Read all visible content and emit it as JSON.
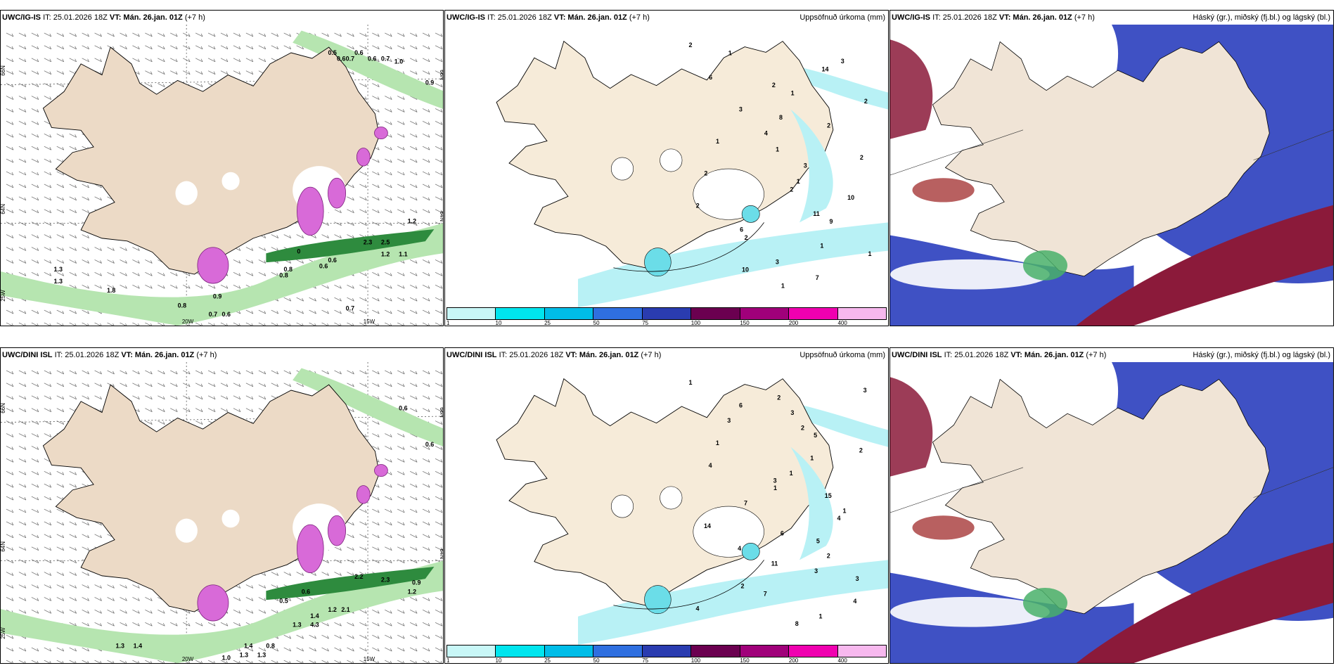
{
  "rows": [
    {
      "model": "UWC/IG-IS",
      "panels": [
        {
          "type": "wind",
          "it_label": "IT: 25.01.2026 18Z",
          "vt_label": "VT: Mán. 26.jan. 01Z",
          "lead": "(+7 h)",
          "right_title": "",
          "gust_labels": [
            "0.5",
            "0.6",
            "0.7",
            "0.6",
            "0.6",
            "0.7",
            "1.0",
            "0.9",
            "0.8",
            "0.6",
            "0.6",
            "0.8",
            "0.7",
            "1.2",
            "2.3",
            "2.5",
            "1.2",
            "1.1",
            "1.3",
            "1.8",
            "1.3",
            "0.9",
            "0.8",
            "0.7",
            "0.6",
            "0"
          ]
        },
        {
          "type": "precip",
          "it_label": "IT: 25.01.2026 18Z",
          "vt_label": "VT: Mán. 26.jan. 01Z",
          "lead": "(+7 h)",
          "right_title": "Uppsöfnuð úrkoma (mm)",
          "values": [
            "2",
            "1",
            "1",
            "2",
            "2",
            "1",
            "2",
            "4",
            "1",
            "6",
            "7",
            "6",
            "2",
            "2",
            "9",
            "10",
            "14",
            "8",
            "3",
            "11",
            "3",
            "3",
            "3",
            "2",
            "2",
            "1",
            "1",
            "2",
            "1",
            "10",
            "1"
          ]
        },
        {
          "type": "cloud",
          "it_label": "IT: 25.01.2026 18Z",
          "vt_label": "VT: Mán. 26.jan. 01Z",
          "lead": "(+7 h)",
          "right_title": "Háský (gr.), miðský (fj.bl.) og lágský (bl.)"
        }
      ]
    },
    {
      "model": "UWC/DINI ISL",
      "panels": [
        {
          "type": "wind",
          "it_label": "IT: 25.01.2026 18Z",
          "vt_label": "VT: Mán. 26.jan. 01Z",
          "lead": "(+7 h)",
          "right_title": "",
          "gust_labels": [
            "0.6",
            "0.6",
            "0.9",
            "1.2",
            "2.2",
            "2.3",
            "1.2",
            "2.1",
            "1.4",
            "1.3",
            "4.3",
            "0.6",
            "0.5",
            "1.4",
            "1.3",
            "1.0",
            "0.8",
            "1.4",
            "1.3",
            "1.3"
          ]
        },
        {
          "type": "precip",
          "it_label": "IT: 25.01.2026 18Z",
          "vt_label": "VT: Mán. 26.jan. 01Z",
          "lead": "(+7 h)",
          "right_title": "Uppsöfnuð úrkoma (mm)",
          "values": [
            "1",
            "3",
            "1",
            "1",
            "7",
            "6",
            "11",
            "7",
            "8",
            "6",
            "5",
            "4",
            "15",
            "14",
            "2",
            "2",
            "1",
            "2",
            "2",
            "1",
            "1",
            "4",
            "4",
            "3",
            "4",
            "3",
            "3",
            "2",
            "3",
            "1",
            "5",
            "3",
            "4"
          ]
        },
        {
          "type": "cloud",
          "it_label": "IT: 25.01.2026 18Z",
          "vt_label": "VT: Mán. 26.jan. 01Z",
          "lead": "(+7 h)",
          "right_title": "Háský (gr.), miðský (fj.bl.) og lágský (bl.)"
        }
      ]
    }
  ],
  "axes": {
    "lat_labels": [
      "66N",
      "64N",
      "25W"
    ],
    "lon_labels": [
      "20W",
      "15W"
    ],
    "right_lat": [
      "66N",
      "64N"
    ]
  },
  "colorbar": {
    "ticks": [
      "1",
      "10",
      "25",
      "50",
      "75",
      "100",
      "150",
      "200",
      "400"
    ],
    "colors": [
      "#c8f7f7",
      "#00e5ee",
      "#00bde8",
      "#2f6fe0",
      "#2a3cb0",
      "#6b0050",
      "#a0007a",
      "#f000b0",
      "#f7b8ee"
    ]
  },
  "colors": {
    "land": "#f6ebd9",
    "land_wind": "#ecdac6",
    "sea": "#ffffff",
    "precip_light": "#b8f1f5",
    "gust_green": "#2e8b3e",
    "gust_light": "#b6e5b0",
    "pink": "#d86ad8",
    "cloud_blue": "#3f51c4",
    "cloud_red": "#8b1a3a",
    "cloud_green": "#49b06a"
  }
}
